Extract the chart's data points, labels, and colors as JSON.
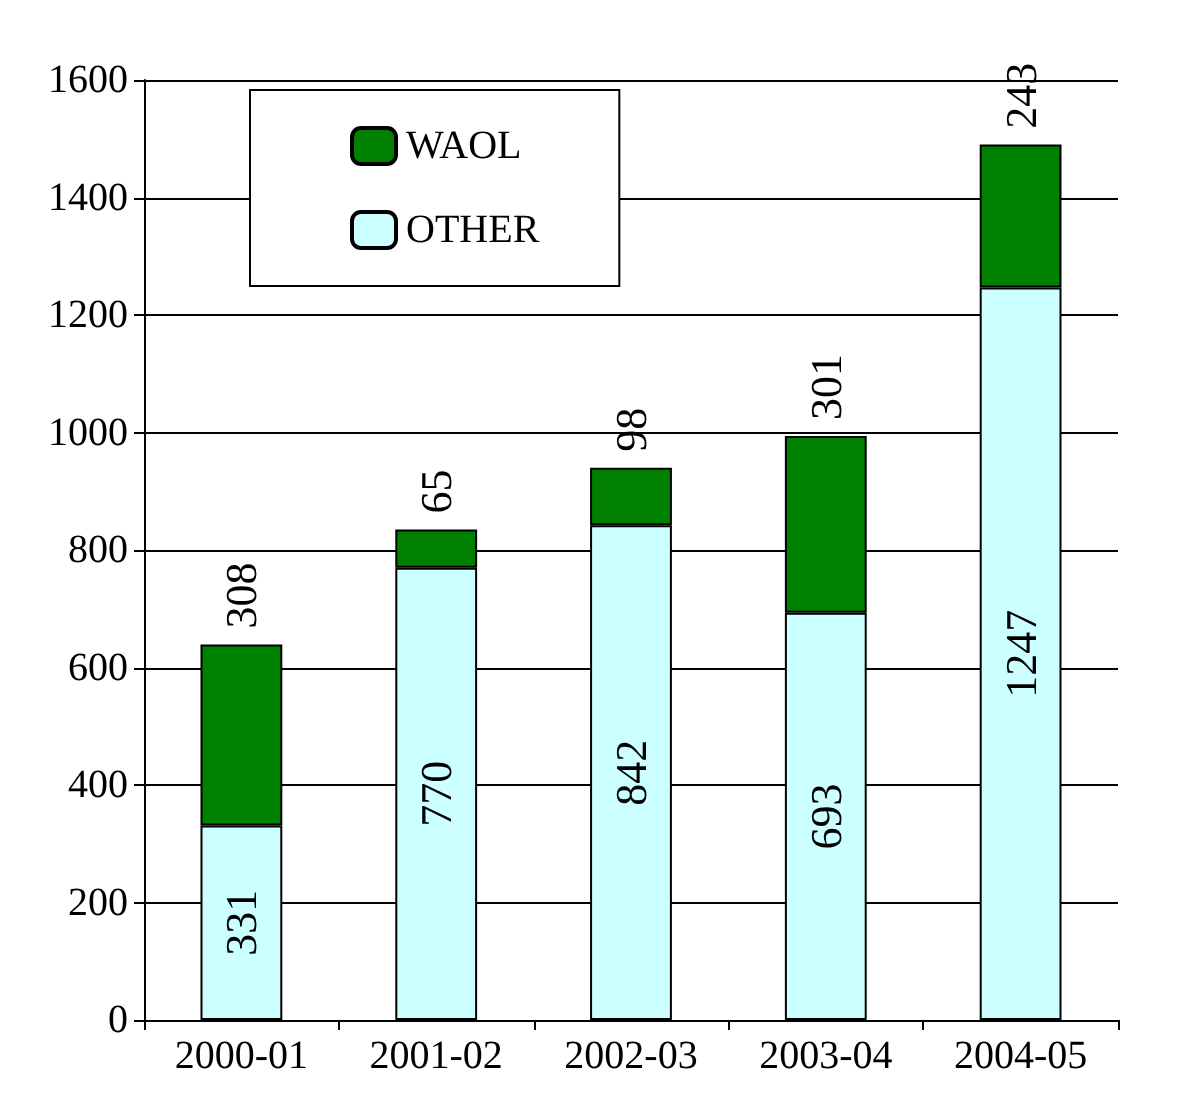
{
  "chart_data": {
    "type": "bar",
    "categories": [
      "2000-01",
      "2001-02",
      "2002-03",
      "2003-04",
      "2004-05"
    ],
    "series": [
      {
        "name": "OTHER",
        "color": "#ccffff",
        "values": [
          331,
          770,
          842,
          693,
          1247
        ]
      },
      {
        "name": "WAOL",
        "color": "#008000",
        "values": [
          308,
          65,
          98,
          301,
          243
        ]
      }
    ],
    "stacked": true,
    "ylim": [
      0,
      1600
    ],
    "yticks": [
      0,
      200,
      400,
      600,
      800,
      1000,
      1200,
      1400,
      1600
    ],
    "grid": "y",
    "legend": "top left",
    "data_labels": true
  }
}
